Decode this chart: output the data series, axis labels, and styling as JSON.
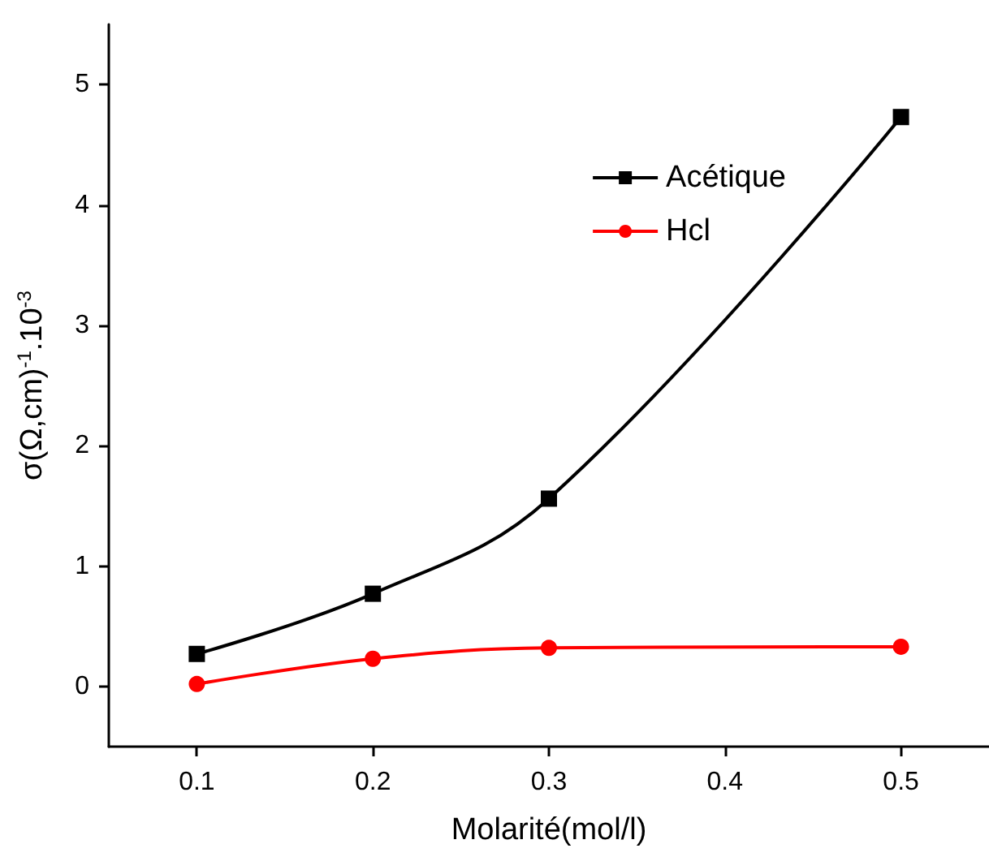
{
  "chart_data": {
    "type": "line",
    "xlabel": "Molarité(mol/l)",
    "ylabel": "σ(Ω,cm)$^{-1}$.10$^{-3}$",
    "x": [
      0.1,
      0.2,
      0.3,
      0.5
    ],
    "series": [
      {
        "name": "Acétique",
        "color": "#000000",
        "marker": "square",
        "values": [
          0.27,
          0.77,
          1.56,
          4.73
        ]
      },
      {
        "name": "Hcl",
        "color": "#ff0000",
        "marker": "circle",
        "values": [
          0.02,
          0.23,
          0.32,
          0.33
        ]
      }
    ],
    "xlim": [
      0.05,
      0.55
    ],
    "xticks": [
      0.1,
      0.2,
      0.3,
      0.4,
      0.5
    ],
    "ylim": [
      -0.5,
      5.5
    ],
    "yticks": [
      0,
      1,
      2,
      3,
      4,
      5
    ],
    "grid": false,
    "legend": "top right",
    "line_style": "solid"
  }
}
